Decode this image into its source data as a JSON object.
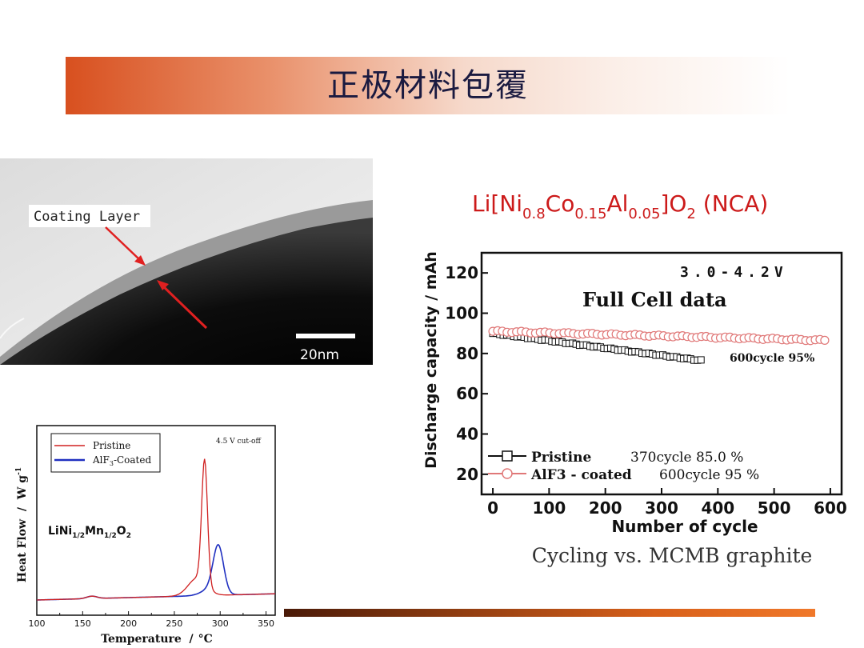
{
  "slide": {
    "title": "正极材料包覆"
  },
  "tem_image": {
    "coating_label": "Coating Layer",
    "scale_label": "20nm"
  },
  "cycling_figure": {
    "formula": {
      "prefix": "Li[Ni",
      "sub1": "0.8",
      "co": "Co",
      "sub2": "0.15",
      "al": "Al",
      "sub3": "0.05",
      "suffix": "]O",
      "sub4": "2",
      "tail": " (NCA)"
    },
    "voltage_label": "3.0-4.2V",
    "chart_title": "Full Cell data",
    "annotation_600": "600cycle 95%",
    "legend": [
      {
        "name": "Pristine",
        "note": "370cycle 85.0 %"
      },
      {
        "name": "AlF3 - coated",
        "note": "600cycle 95 %"
      }
    ],
    "caption": "Cycling vs. MCMB graphite",
    "colors": {
      "pristine": "#111111",
      "coated": "#e07878"
    }
  },
  "dsc_figure": {
    "condition_label": "4.5 V cut-off",
    "compound_label": {
      "a": "LiNi",
      "s1": "1/2",
      "b": "Mn",
      "s2": "1/2",
      "c": "O",
      "s3": "2"
    },
    "legend": [
      {
        "name": "Pristine"
      },
      {
        "name": "AlF",
        "sub": "3",
        "suffix": "-Coated"
      }
    ],
    "ylabel": "Heat Flow  /  W g",
    "ylabel_sup": "-1",
    "xlabel": "Temperature  /",
    "xlabel_unit": "°C",
    "colors": {
      "pristine": "#d02020",
      "coated": "#2030c0"
    }
  },
  "chart_data": [
    {
      "type": "scatter",
      "title": "Full Cell data",
      "xlabel": "Number of cycle",
      "ylabel": "Discharge capacity / mAh",
      "xlim": [
        -20,
        620
      ],
      "ylim": [
        10,
        130
      ],
      "xticks": [
        0,
        100,
        200,
        300,
        400,
        500,
        600
      ],
      "yticks": [
        20,
        40,
        60,
        80,
        100,
        120
      ],
      "grid": false,
      "legend_position": "bottom-left",
      "series": [
        {
          "name": "Pristine",
          "marker": "square",
          "x_start": 0,
          "x_end": 370,
          "y_start": 90,
          "y_end": 76.5
        },
        {
          "name": "AlF3 - coated",
          "marker": "circle",
          "x_start": 0,
          "x_end": 590,
          "y_start": 91,
          "y_end": 86.5
        }
      ]
    },
    {
      "type": "line",
      "xlabel": "Temperature  /  °C",
      "ylabel": "Heat Flow  /  W g-1",
      "xlim": [
        100,
        360
      ],
      "xticks": [
        100,
        150,
        200,
        250,
        300,
        350
      ],
      "legend_position": "top-left",
      "series": [
        {
          "name": "Pristine",
          "peaks": [
            {
              "x": 283,
              "height": 1.0
            }
          ]
        },
        {
          "name": "AlF3-Coated",
          "peaks": [
            {
              "x": 298,
              "height": 0.37
            }
          ]
        }
      ]
    }
  ]
}
